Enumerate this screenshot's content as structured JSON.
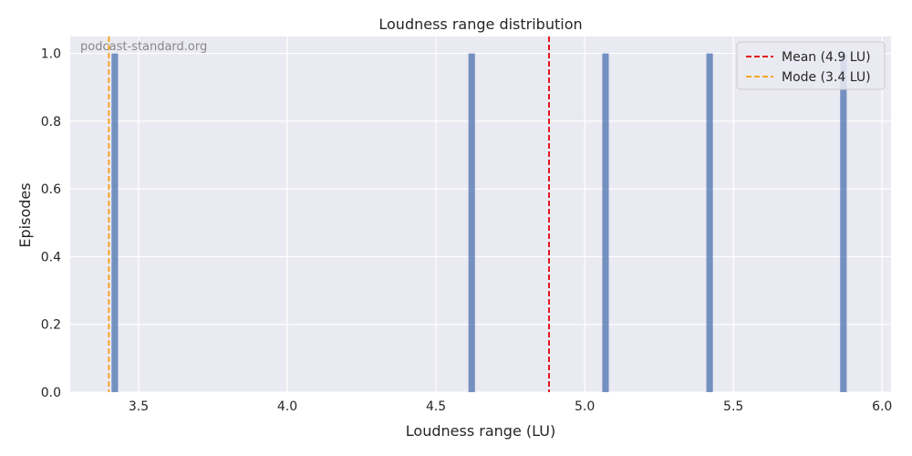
{
  "chart_data": {
    "type": "bar",
    "title": "Loudness range distribution",
    "xlabel": "Loudness range (LU)",
    "ylabel": "Episodes",
    "xlim": [
      3.27,
      6.03
    ],
    "ylim": [
      0,
      1.05
    ],
    "xticks": [
      3.5,
      4.0,
      4.5,
      5.0,
      5.5,
      6.0
    ],
    "xtick_labels": [
      "3.5",
      "4.0",
      "4.5",
      "5.0",
      "5.5",
      "6.0"
    ],
    "yticks": [
      0,
      0.2,
      0.4,
      0.6,
      0.8,
      1.0
    ],
    "ytick_labels": [
      "0.0",
      "0.2",
      "0.4",
      "0.6",
      "0.8",
      "1.0"
    ],
    "bin_width": 0.05,
    "bars": [
      {
        "x": 3.42,
        "count": 1
      },
      {
        "x": 4.62,
        "count": 1
      },
      {
        "x": 5.07,
        "count": 1
      },
      {
        "x": 5.42,
        "count": 1
      },
      {
        "x": 5.87,
        "count": 1
      }
    ],
    "reference_lines": [
      {
        "label": "Mean (4.9 LU)",
        "x": 4.88,
        "color": "#e41a1c",
        "style": "dashed"
      },
      {
        "label": "Mode (3.4 LU)",
        "x": 3.4,
        "color": "#f5a623",
        "style": "dashed"
      }
    ],
    "bar_color": "#4c72b0",
    "background": "#eaeaf2",
    "grid": true,
    "legend_position": "top-right",
    "watermark": "podcast-standard.org"
  }
}
